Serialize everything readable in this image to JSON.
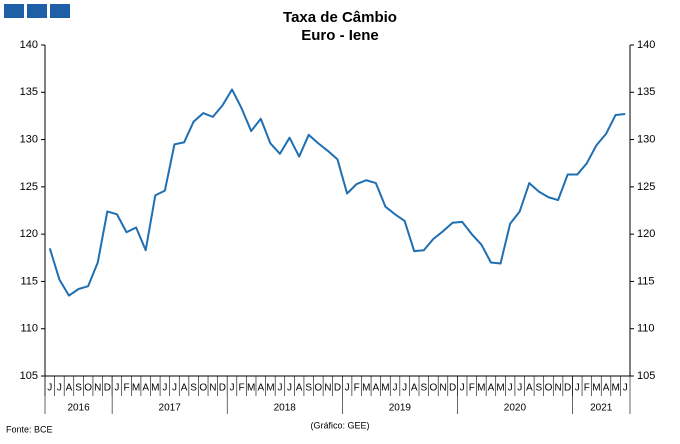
{
  "chart_data": {
    "type": "line",
    "title": "Taxa de Câmbio",
    "subtitle": "Euro - Iene",
    "categories": [
      "J",
      "J",
      "A",
      "S",
      "O",
      "N",
      "D",
      "J",
      "F",
      "M",
      "A",
      "M",
      "J",
      "J",
      "A",
      "S",
      "O",
      "N",
      "D",
      "J",
      "F",
      "M",
      "A",
      "M",
      "J",
      "J",
      "A",
      "S",
      "O",
      "N",
      "D",
      "J",
      "F",
      "M",
      "A",
      "M",
      "J",
      "J",
      "A",
      "S",
      "O",
      "N",
      "D",
      "J",
      "F",
      "M",
      "A",
      "M",
      "J",
      "J",
      "A",
      "S",
      "O",
      "N",
      "D",
      "J",
      "F",
      "M",
      "A",
      "M",
      "J"
    ],
    "years": [
      "2016",
      "2017",
      "2018",
      "2019",
      "2020",
      "2021"
    ],
    "series": [
      {
        "name": "Euro - Iene",
        "color": "#1f6fb2",
        "values": [
          118.5,
          115.2,
          113.5,
          114.2,
          114.5,
          117.0,
          122.4,
          122.1,
          120.2,
          120.7,
          118.3,
          124.1,
          124.6,
          129.5,
          129.7,
          131.9,
          132.8,
          132.4,
          133.6,
          135.3,
          133.3,
          130.9,
          132.2,
          129.6,
          128.5,
          130.2,
          128.2,
          130.5,
          129.6,
          128.8,
          127.9,
          124.3,
          125.3,
          125.7,
          125.4,
          122.9,
          122.1,
          121.4,
          118.2,
          118.3,
          119.5,
          120.3,
          121.2,
          121.3,
          120.0,
          118.9,
          117.0,
          116.9,
          121.1,
          122.4,
          125.4,
          124.5,
          123.9,
          123.6,
          126.3,
          126.3,
          127.5,
          129.4,
          130.6,
          132.6,
          132.7
        ]
      }
    ],
    "ylim": [
      105,
      140
    ],
    "yticks": [
      105,
      110,
      115,
      120,
      125,
      130,
      135,
      140
    ],
    "source": "Fonte: BCE",
    "credit": "(Gráfico: GEE)"
  }
}
